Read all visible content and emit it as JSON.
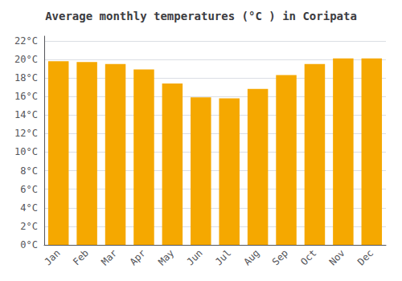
{
  "chart_data": {
    "type": "bar",
    "title": "Average monthly temperatures (°C ) in Coripata",
    "categories": [
      "Jan",
      "Feb",
      "Mar",
      "Apr",
      "May",
      "Jun",
      "Jul",
      "Aug",
      "Sep",
      "Oct",
      "Nov",
      "Dec"
    ],
    "values": [
      19.8,
      19.7,
      19.5,
      18.9,
      17.4,
      15.9,
      15.8,
      16.8,
      18.3,
      19.5,
      20.1,
      20.1
    ],
    "color": "#F5A800",
    "ylim": [
      0,
      22.5
    ],
    "yticks": [
      {
        "value": 0,
        "label": "0°C"
      },
      {
        "value": 2,
        "label": "2°C"
      },
      {
        "value": 4,
        "label": "4°C"
      },
      {
        "value": 6,
        "label": "6°C"
      },
      {
        "value": 8,
        "label": "8°C"
      },
      {
        "value": 10,
        "label": "10°C"
      },
      {
        "value": 12,
        "label": "12°C"
      },
      {
        "value": 14,
        "label": "14°C"
      },
      {
        "value": 16,
        "label": "16°C"
      },
      {
        "value": 18,
        "label": "18°C"
      },
      {
        "value": 20,
        "label": "20°C"
      },
      {
        "value": 22,
        "label": "22°C"
      }
    ],
    "grid": true
  }
}
